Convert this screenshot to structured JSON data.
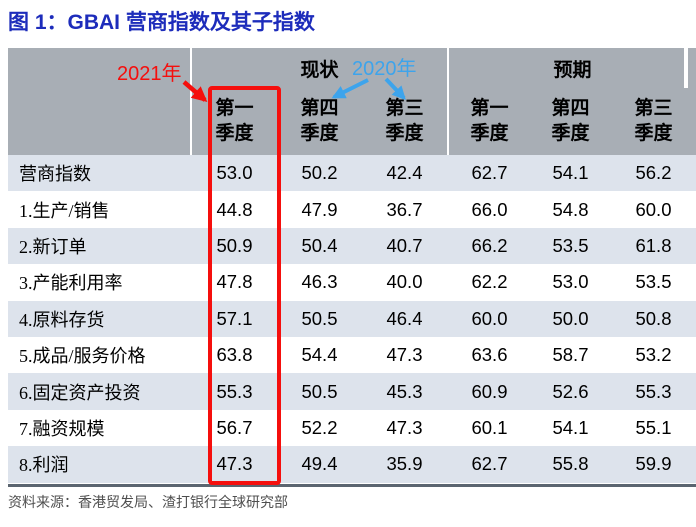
{
  "title": "图 1：GBAI 营商指数及其子指数",
  "source": "资料来源：香港贸发局、渣打银行全球研究部",
  "annotations": {
    "label_2021": "2021年",
    "label_2020": "2020年",
    "highlight_note": "红框标注2021年第一季度现状列；红色箭头指向该列，蓝色箭头由2020年指向第四季度与第三季度列"
  },
  "colors": {
    "title_blue": "#1d2cbb",
    "annotation_red": "#f50f0d",
    "annotation_blue": "#3da4ec",
    "header_gray": "#a8aeb5",
    "row_alt": "#dde3ec",
    "bottom_border": "#5b6570"
  },
  "table": {
    "sections": [
      {
        "label": "现状"
      },
      {
        "label": "预期"
      }
    ],
    "quarters": [
      {
        "line1": "第一",
        "line2": "季度"
      },
      {
        "line1": "第四",
        "line2": "季度"
      },
      {
        "line1": "第三",
        "line2": "季度"
      },
      {
        "line1": "第一",
        "line2": "季度"
      },
      {
        "line1": "第四",
        "line2": "季度"
      },
      {
        "line1": "第三",
        "line2": "季度"
      }
    ]
  },
  "chart_data": {
    "type": "table",
    "title": "图 1：GBAI 营商指数及其子指数",
    "column_groups": [
      {
        "group": "现状",
        "columns": [
          "2021年 第一季度",
          "2020年 第四季度",
          "2020年 第三季度"
        ]
      },
      {
        "group": "预期",
        "columns": [
          "第一季度",
          "第四季度",
          "第三季度"
        ]
      }
    ],
    "rows": [
      {
        "label": "营商指数",
        "values": [
          53.0,
          50.2,
          42.4,
          62.7,
          54.1,
          56.2
        ]
      },
      {
        "label": "1.生产/销售",
        "values": [
          44.8,
          47.9,
          36.7,
          66.0,
          54.8,
          60.0
        ]
      },
      {
        "label": "2.新订单",
        "values": [
          50.9,
          50.4,
          40.7,
          66.2,
          53.5,
          61.8
        ]
      },
      {
        "label": "3.产能利用率",
        "values": [
          47.8,
          46.3,
          40.0,
          62.2,
          53.0,
          53.5
        ]
      },
      {
        "label": "4.原料存货",
        "values": [
          57.1,
          50.5,
          46.4,
          60.0,
          50.0,
          50.8
        ]
      },
      {
        "label": "5.成品/服务价格",
        "values": [
          63.8,
          54.4,
          47.3,
          63.6,
          58.7,
          53.2
        ]
      },
      {
        "label": "6.固定资产投资",
        "values": [
          55.3,
          50.5,
          45.3,
          60.9,
          52.6,
          55.3
        ]
      },
      {
        "label": "7.融资规模",
        "values": [
          56.7,
          52.2,
          47.3,
          60.1,
          54.1,
          55.1
        ]
      },
      {
        "label": "8.利润",
        "values": [
          47.3,
          49.4,
          35.9,
          62.7,
          55.8,
          59.9
        ]
      }
    ],
    "source": "资料来源：香港贸发局、渣打银行全球研究部"
  }
}
